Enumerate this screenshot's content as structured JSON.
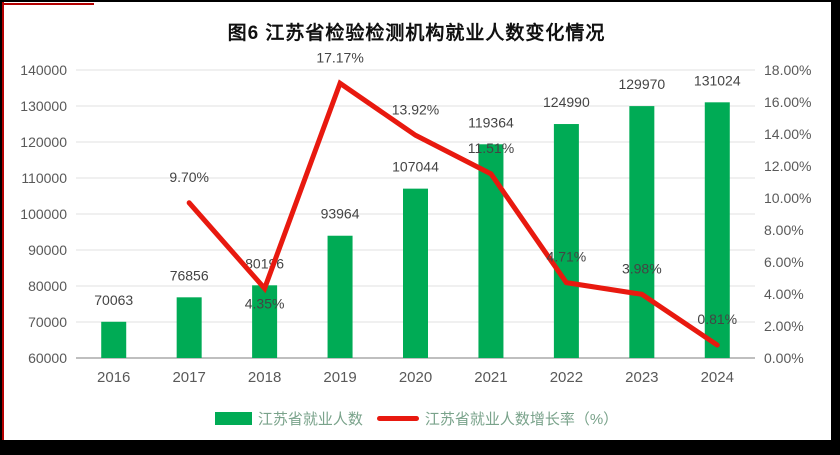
{
  "frame": {
    "background_color": "#000000",
    "panel_color": "#ffffff",
    "crop_border_color": "#b30000"
  },
  "chart_data": {
    "type": "bar",
    "subtype": "bar+line combo",
    "title": "图6  江苏省检验检测机构就业人数变化情况",
    "categories": [
      "2016",
      "2017",
      "2018",
      "2019",
      "2020",
      "2021",
      "2022",
      "2023",
      "2024"
    ],
    "series": [
      {
        "name": "江苏省就业人数",
        "type": "bar",
        "axis": "left",
        "color": "#00AB55",
        "values": [
          70063,
          76856,
          80196,
          93964,
          107044,
          119364,
          124990,
          129970,
          131024
        ],
        "labels": [
          "70063",
          "76856",
          "80196",
          "93964",
          "107044",
          "119364",
          "124990",
          "129970",
          "131024"
        ]
      },
      {
        "name": "江苏省就业人数增长率（%）",
        "type": "line",
        "axis": "right",
        "color": "#E8190F",
        "values": [
          null,
          9.7,
          4.35,
          17.17,
          13.92,
          11.51,
          4.71,
          3.98,
          0.81
        ],
        "labels": [
          "",
          "9.70%",
          "4.35%",
          "17.17%",
          "13.92%",
          "11.51%",
          "4.71%",
          "3.98%",
          "0.81%"
        ]
      }
    ],
    "left_axis": {
      "min": 60000,
      "max": 140000,
      "step": 10000,
      "ticks_top_to_bottom": [
        "140000",
        "130000",
        "120000",
        "110000",
        "100000",
        "90000",
        "80000",
        "70000",
        "60000"
      ]
    },
    "right_axis": {
      "min": 0,
      "max": 18,
      "step": 2,
      "ticks_top_to_bottom": [
        "18.00%",
        "16.00%",
        "14.00%",
        "12.00%",
        "10.00%",
        "8.00%",
        "6.00%",
        "4.00%",
        "2.00%",
        "0.00%"
      ]
    },
    "grid": true,
    "legend_position": "bottom",
    "colors": {
      "gridline": "#E2E2E2",
      "axis_line": "#BFBFBF",
      "tick_text": "#595959",
      "data_label_text": "#444444",
      "legend_text": "#7aa38b",
      "title_text": "#111111"
    }
  },
  "legend": {
    "items": [
      {
        "label": "江苏省就业人数",
        "color": "#00AB55",
        "marker": "bar"
      },
      {
        "label": "江苏省就业人数增长率（%）",
        "color": "#E8190F",
        "marker": "line"
      }
    ]
  }
}
